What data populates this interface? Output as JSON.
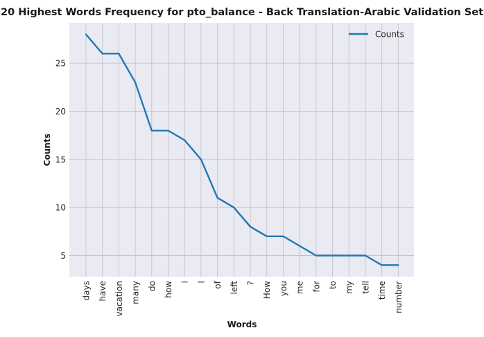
{
  "chart_data": {
    "type": "line",
    "title": "20 Highest Words Frequency for pto_balance - Back Translation-Arabic Validation Set",
    "xlabel": "Words",
    "ylabel": "Counts",
    "categories": [
      "days",
      "have",
      "vacation",
      "many",
      "do",
      "how",
      "i",
      "I",
      "of",
      "left",
      "?",
      "How",
      "you",
      "me",
      "for",
      "to",
      "my",
      "tell",
      "time",
      "number"
    ],
    "series": [
      {
        "name": "Counts",
        "color": "#1f77b4",
        "values": [
          28,
          26,
          26,
          23,
          18,
          18,
          17,
          15,
          11,
          10,
          8,
          7,
          7,
          6,
          5,
          5,
          5,
          5,
          4,
          4
        ]
      }
    ],
    "yticks": [
      5,
      10,
      15,
      20,
      25
    ],
    "ylim": [
      2.8,
      29.2
    ],
    "grid": true,
    "legend": "top-right",
    "colors": {
      "plot_background": "#eaeaf2",
      "grid": "#c4c4c4"
    }
  }
}
